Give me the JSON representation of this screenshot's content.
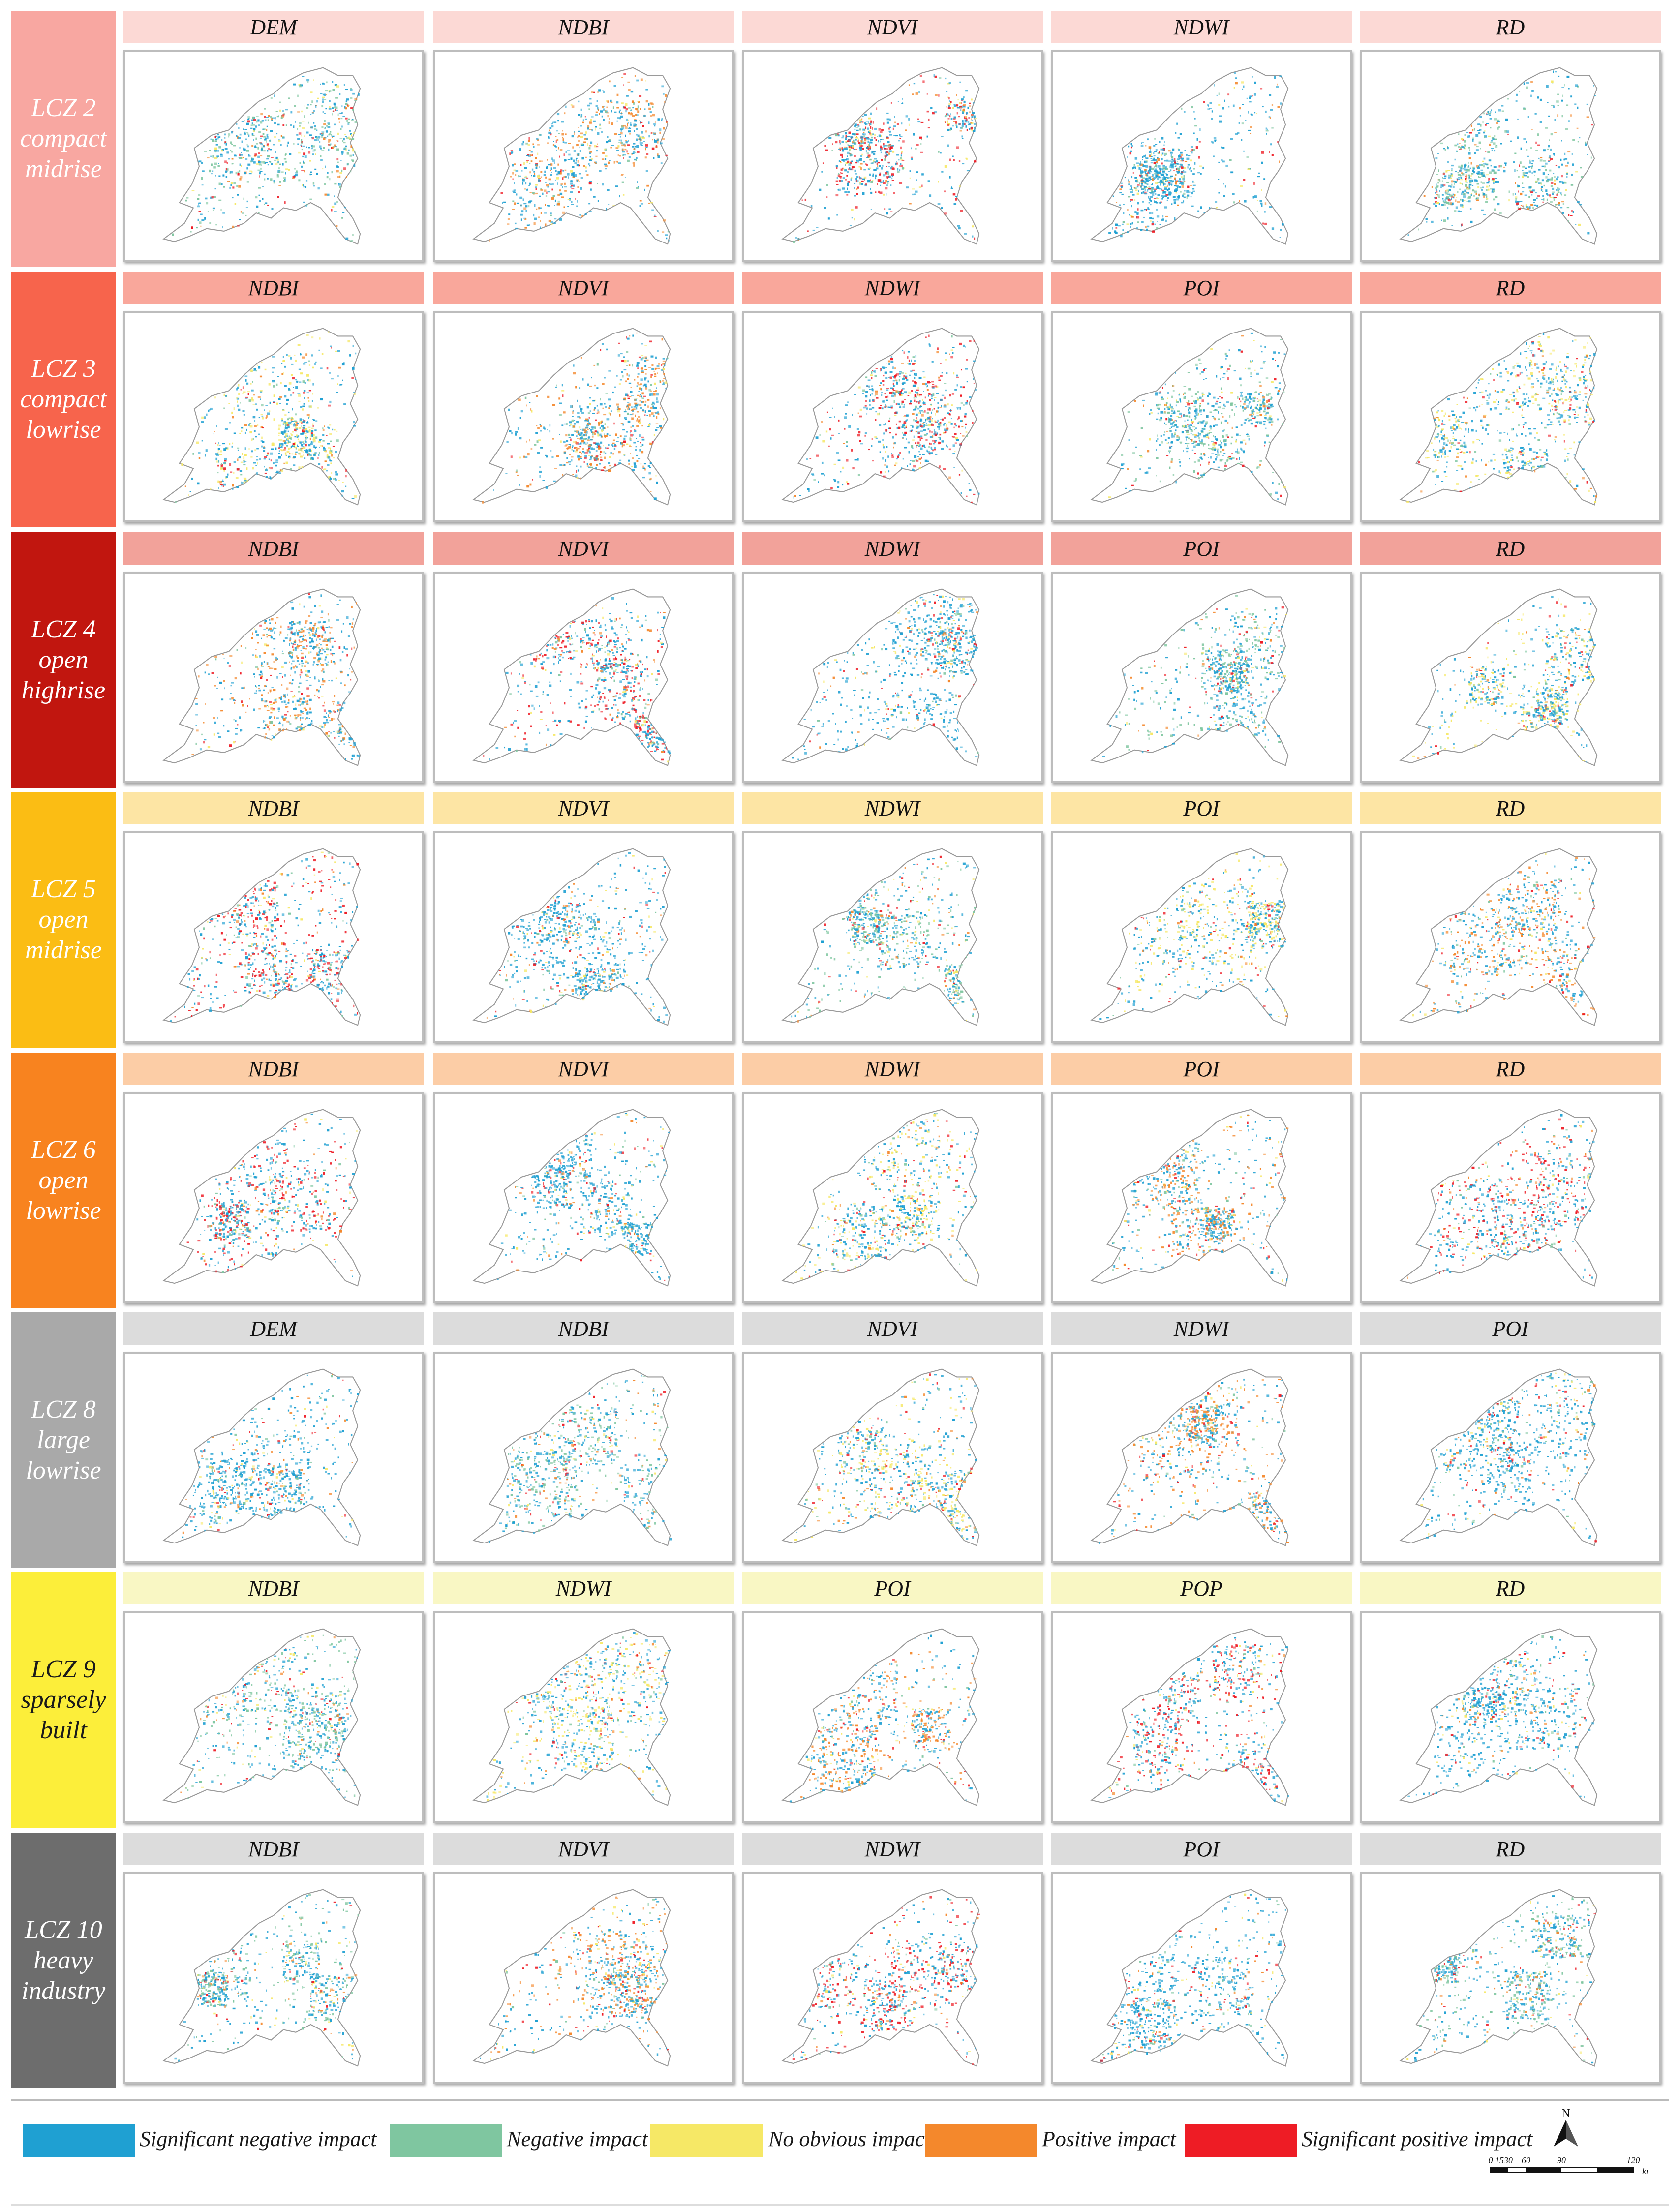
{
  "colors": {
    "significant_negative": "#1fa0d2",
    "negative": "#7fc6a0",
    "no_obvious": "#f6e866",
    "positive": "#f4882c",
    "significant_positive": "#ee1c25",
    "outline": "#9a9a9a"
  },
  "rows": [
    {
      "zone": "LCZ 2",
      "desc1": "compact",
      "desc2": "midrise",
      "band": "#f8a7a1",
      "text": "#ffffff",
      "hdr": "#fcd9d5",
      "layers": [
        "DEM",
        "NDBI",
        "NDVI",
        "NDWI",
        "RD"
      ]
    },
    {
      "zone": "LCZ 3",
      "desc1": "compact",
      "desc2": "lowrise",
      "band": "#f7644c",
      "text": "#ffffff",
      "hdr": "#f9a79b",
      "layers": [
        "NDBI",
        "NDVI",
        "NDWI",
        "POI",
        "RD"
      ]
    },
    {
      "zone": "LCZ 4",
      "desc1": "open",
      "desc2": "highrise",
      "band": "#c1160f",
      "text": "#ffffff",
      "hdr": "#f2a29a",
      "layers": [
        "NDBI",
        "NDVI",
        "NDWI",
        "POI",
        "RD"
      ]
    },
    {
      "zone": "LCZ 5",
      "desc1": "open",
      "desc2": "midrise",
      "band": "#fbbd14",
      "text": "#ffffff",
      "hdr": "#fde5a4",
      "layers": [
        "NDBI",
        "NDVI",
        "NDWI",
        "POI",
        "RD"
      ]
    },
    {
      "zone": "LCZ 6",
      "desc1": "open",
      "desc2": "lowrise",
      "band": "#f8831f",
      "text": "#ffffff",
      "hdr": "#fccda6",
      "layers": [
        "NDBI",
        "NDVI",
        "NDWI",
        "POI",
        "RD"
      ]
    },
    {
      "zone": "LCZ 8",
      "desc1": "large",
      "desc2": "lowrise",
      "band": "#a9a9a9",
      "text": "#ffffff",
      "hdr": "#dcdcdc",
      "layers": [
        "DEM",
        "NDBI",
        "NDVI",
        "NDWI",
        "POI"
      ]
    },
    {
      "zone": "LCZ 9",
      "desc1": "sparsely",
      "desc2": "built",
      "band": "#fcee3a",
      "text": "#1a1a1a",
      "hdr": "#f9f7c4",
      "layers": [
        "NDBI",
        "NDWI",
        "POI",
        "POP",
        "RD"
      ]
    },
    {
      "zone": "LCZ 10",
      "desc1": "heavy",
      "desc2": "industry",
      "band": "#6d6d6d",
      "text": "#ffffff",
      "hdr": "#dcdcdc",
      "layers": [
        "NDBI",
        "NDVI",
        "NDWI",
        "POI",
        "RD"
      ]
    }
  ],
  "legend": {
    "items": [
      {
        "label": "Significant negative impact",
        "color": "#1fa0d2"
      },
      {
        "label": "Negative impact",
        "color": "#7fc6a0"
      },
      {
        "label": "No obvious impact",
        "color": "#f6e866"
      },
      {
        "label": "Positive impact",
        "color": "#f4882c"
      },
      {
        "label": "Significant positive impact",
        "color": "#ee1c25"
      }
    ],
    "north_label": "N",
    "scale_ticks": [
      "0",
      "15",
      "30",
      "60",
      "90",
      "120"
    ],
    "scale_unit": "km"
  }
}
